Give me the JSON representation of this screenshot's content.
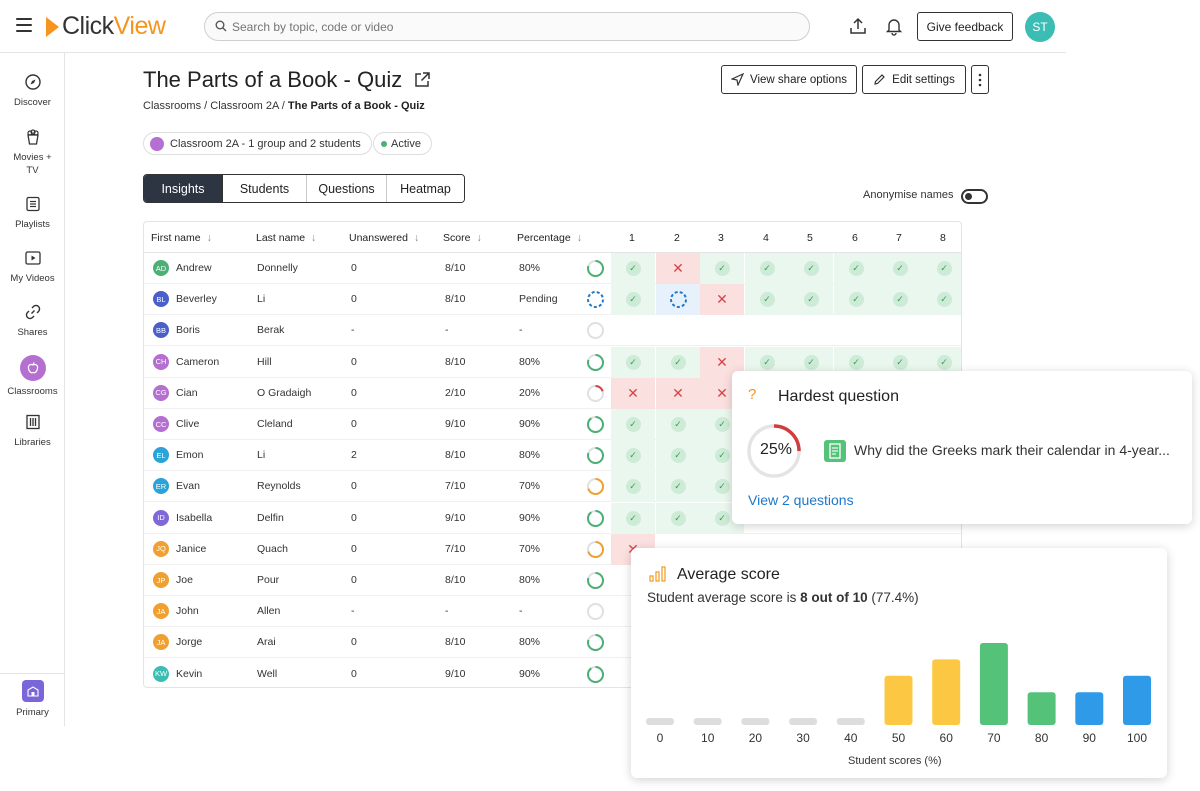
{
  "header": {
    "logo_prefix": "Click",
    "logo_suffix": "View",
    "search_placeholder": "Search by topic, code or video",
    "feedback_label": "Give feedback",
    "user_initials": "ST"
  },
  "sidebar": {
    "items": [
      {
        "label": "Discover",
        "icon": "compass-icon"
      },
      {
        "label": "Movies + TV",
        "icon": "popcorn-icon"
      },
      {
        "label": "Playlists",
        "icon": "playlist-icon"
      },
      {
        "label": "My Videos",
        "icon": "video-icon"
      },
      {
        "label": "Shares",
        "icon": "link-icon"
      },
      {
        "label": "Classrooms",
        "icon": "apple-icon"
      },
      {
        "label": "Libraries",
        "icon": "library-icon"
      }
    ],
    "bottom_label": "Primary"
  },
  "page": {
    "title": "The Parts of a Book - Quiz",
    "breadcrumb": [
      "Classrooms",
      "Classroom 2A",
      "The Parts of a Book - Quiz"
    ],
    "share_label": "View share options",
    "edit_label": "Edit settings",
    "class_chip": "Classroom 2A - 1 group and 2 students",
    "status_chip": "Active",
    "tabs": [
      "Insights",
      "Students",
      "Questions",
      "Heatmap"
    ],
    "anonymise_label": "Anonymise names"
  },
  "table": {
    "headers": [
      "First name",
      "Last name",
      "Unanswered",
      "Score",
      "Percentage"
    ],
    "question_numbers": [
      "1",
      "2",
      "3",
      "4",
      "5",
      "6",
      "7",
      "8"
    ],
    "rows": [
      {
        "initials": "AD",
        "color": "#4caf75",
        "first": "Andrew",
        "last": "Donnelly",
        "unanswered": "0",
        "score": "8/10",
        "pct": "80%",
        "fill": 0.8,
        "ring": "#4caf75",
        "q": "cwcccccc"
      },
      {
        "initials": "BL",
        "color": "#4a5fc9",
        "first": "Beverley",
        "last": "Li",
        "unanswered": "0",
        "score": "8/10",
        "pct": "Pending",
        "fill": 0,
        "ring": "#1f78c8",
        "q": "cpwccccc"
      },
      {
        "initials": "BB",
        "color": "#4a5fc9",
        "first": "Boris",
        "last": "Berak",
        "unanswered": "-",
        "score": "-",
        "pct": "-",
        "fill": 0,
        "ring": "#ccc",
        "q": ""
      },
      {
        "initials": "CH",
        "color": "#b46fd1",
        "first": "Cameron",
        "last": "Hill",
        "unanswered": "0",
        "score": "8/10",
        "pct": "80%",
        "fill": 0.8,
        "ring": "#4caf75",
        "q": "ccwccccc"
      },
      {
        "initials": "CG",
        "color": "#b46fd1",
        "first": "Cian",
        "last": "O Gradaigh",
        "unanswered": "0",
        "score": "2/10",
        "pct": "20%",
        "fill": 0.2,
        "ring": "#d64545",
        "q": "www"
      },
      {
        "initials": "CC",
        "color": "#b46fd1",
        "first": "Clive",
        "last": "Cleland",
        "unanswered": "0",
        "score": "9/10",
        "pct": "90%",
        "fill": 0.9,
        "ring": "#4caf75",
        "q": "ccc"
      },
      {
        "initials": "EL",
        "color": "#2aa3d8",
        "first": "Emon",
        "last": "Li",
        "unanswered": "2",
        "score": "8/10",
        "pct": "80%",
        "fill": 0.8,
        "ring": "#4caf75",
        "q": "ccc"
      },
      {
        "initials": "ER",
        "color": "#2aa3d8",
        "first": "Evan",
        "last": "Reynolds",
        "unanswered": "0",
        "score": "7/10",
        "pct": "70%",
        "fill": 0.7,
        "ring": "#f0a030",
        "q": "ccc"
      },
      {
        "initials": "ID",
        "color": "#8068d8",
        "first": "Isabella",
        "last": "Delfin",
        "unanswered": "0",
        "score": "9/10",
        "pct": "90%",
        "fill": 0.9,
        "ring": "#4caf75",
        "q": "ccc"
      },
      {
        "initials": "JQ",
        "color": "#f0a030",
        "first": "Janice",
        "last": "Quach",
        "unanswered": "0",
        "score": "7/10",
        "pct": "70%",
        "fill": 0.7,
        "ring": "#f0a030",
        "q": "w"
      },
      {
        "initials": "JP",
        "color": "#f0a030",
        "first": "Joe",
        "last": "Pour",
        "unanswered": "0",
        "score": "8/10",
        "pct": "80%",
        "fill": 0.8,
        "ring": "#4caf75",
        "q": ""
      },
      {
        "initials": "JA",
        "color": "#f0a030",
        "first": "John",
        "last": "Allen",
        "unanswered": "-",
        "score": "-",
        "pct": "-",
        "fill": 0,
        "ring": "#ccc",
        "q": ""
      },
      {
        "initials": "JA",
        "color": "#f0a030",
        "first": "Jorge",
        "last": "Arai",
        "unanswered": "0",
        "score": "8/10",
        "pct": "80%",
        "fill": 0.8,
        "ring": "#4caf75",
        "q": ""
      },
      {
        "initials": "KW",
        "color": "#3bbdb3",
        "first": "Kevin",
        "last": "Well",
        "unanswered": "0",
        "score": "9/10",
        "pct": "90%",
        "fill": 0.9,
        "ring": "#4caf75",
        "q": ""
      }
    ]
  },
  "hardest": {
    "title": "Hardest question",
    "percent_label": "25%",
    "percent_value": 0.25,
    "question": "Why did the Greeks mark their calendar in 4-year...",
    "link": "View 2 questions"
  },
  "average": {
    "title": "Average score",
    "subtitle_prefix": "Student average score is ",
    "subtitle_bold": "8 out of 10",
    "subtitle_suffix": " (77.4%)"
  },
  "chart_data": {
    "type": "bar",
    "categories": [
      "0",
      "10",
      "20",
      "30",
      "40",
      "50",
      "60",
      "70",
      "80",
      "90",
      "100"
    ],
    "values": [
      0,
      0,
      0,
      0,
      0,
      3,
      4,
      5,
      2,
      2,
      3
    ],
    "colors": [
      "#dddddd",
      "#dddddd",
      "#dddddd",
      "#dddddd",
      "#dddddd",
      "#fcc843",
      "#fcc843",
      "#55c27a",
      "#55c27a",
      "#2f9ae8",
      "#2f9ae8"
    ],
    "xlabel": "Student scores (%)",
    "ylim": [
      0,
      5
    ]
  }
}
